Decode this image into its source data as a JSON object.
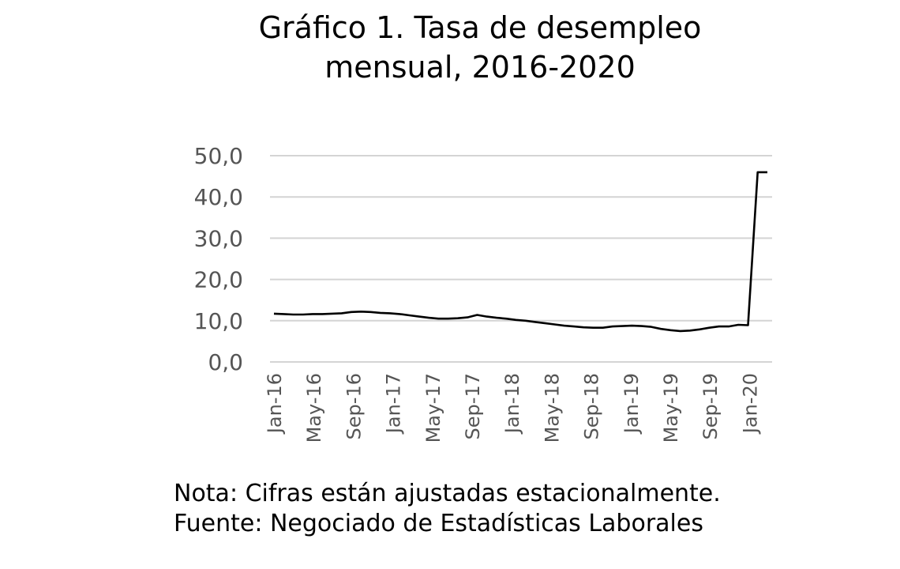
{
  "chart_data": {
    "type": "line",
    "title_lines": [
      "Gráfico 1. Tasa de desempleo",
      "mensual, 2016-2020"
    ],
    "xlabel": "",
    "ylabel": "",
    "ylim": [
      0,
      50
    ],
    "yticks": [
      "0,0",
      "10,0",
      "20,0",
      "30,0",
      "40,0",
      "50,0"
    ],
    "ytick_values": [
      0,
      10,
      20,
      30,
      40,
      50
    ],
    "x": [
      "Jan-16",
      "Feb-16",
      "Mar-16",
      "Apr-16",
      "May-16",
      "Jun-16",
      "Jul-16",
      "Aug-16",
      "Sep-16",
      "Oct-16",
      "Nov-16",
      "Dec-16",
      "Jan-17",
      "Feb-17",
      "Mar-17",
      "Apr-17",
      "May-17",
      "Jun-17",
      "Jul-17",
      "Aug-17",
      "Sep-17",
      "Oct-17",
      "Nov-17",
      "Dec-17",
      "Jan-18",
      "Feb-18",
      "Mar-18",
      "Apr-18",
      "May-18",
      "Jun-18",
      "Jul-18",
      "Aug-18",
      "Sep-18",
      "Oct-18",
      "Nov-18",
      "Dec-18",
      "Jan-19",
      "Feb-19",
      "Mar-19",
      "Apr-19",
      "May-19",
      "Jun-19",
      "Jul-19",
      "Aug-19",
      "Sep-19",
      "Oct-19",
      "Nov-19",
      "Dec-19",
      "Jan-20",
      "Feb-20",
      "Mar-20",
      "Apr-20"
    ],
    "xtick_labels": [
      "Jan-16",
      "May-16",
      "Sep-16",
      "Jan-17",
      "May-17",
      "Sep-17",
      "Jan-18",
      "May-18",
      "Sep-18",
      "Jan-19",
      "May-19",
      "Sep-19",
      "Jan-20"
    ],
    "series": [
      {
        "values": [
          11.7,
          11.6,
          11.5,
          11.5,
          11.6,
          11.6,
          11.7,
          11.8,
          12.1,
          12.2,
          12.1,
          11.9,
          11.8,
          11.6,
          11.3,
          11.0,
          10.7,
          10.5,
          10.5,
          10.6,
          10.8,
          11.4,
          11.0,
          10.7,
          10.5,
          10.2,
          10.0,
          9.7,
          9.4,
          9.1,
          8.8,
          8.6,
          8.4,
          8.3,
          8.3,
          8.6,
          8.7,
          8.8,
          8.7,
          8.5,
          8.0,
          7.7,
          7.5,
          7.6,
          7.9,
          8.3,
          8.6,
          8.6,
          9.0,
          8.9,
          46.0,
          46.0
        ],
        "color": "#000000"
      }
    ],
    "grid": true,
    "legend": "none"
  },
  "notes": {
    "nota": "Nota: Cifras están ajustadas estacionalmente.",
    "fuente": "Fuente: Negociado de Estadísticas Laborales"
  }
}
